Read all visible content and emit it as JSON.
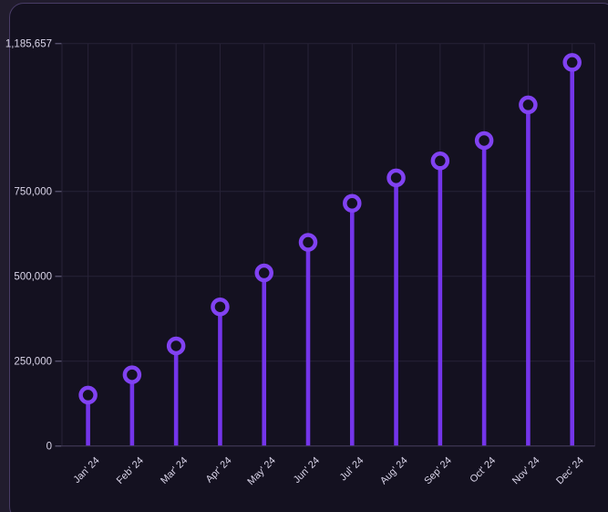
{
  "chart_data": {
    "type": "bar",
    "style": "lollipop",
    "title": "",
    "xlabel": "",
    "ylabel": "",
    "categories": [
      "Jan' 24",
      "Feb' 24",
      "Mar' 24",
      "Apr' 24",
      "May' 24",
      "Jun' 24",
      "Jul' 24",
      "Aug' 24",
      "Sep' 24",
      "Oct' 24",
      "Nov' 24",
      "Dec' 24"
    ],
    "values": [
      150000,
      210000,
      295000,
      410000,
      510000,
      600000,
      715000,
      790000,
      840000,
      900000,
      1005000,
      1130000
    ],
    "ylim": [
      0,
      1185657
    ],
    "yticks": [
      {
        "value": 0,
        "label": "0"
      },
      {
        "value": 250000,
        "label": "250,000"
      },
      {
        "value": 500000,
        "label": "500,000"
      },
      {
        "value": 750000,
        "label": "750,000"
      },
      {
        "value": 1185657,
        "label": "1,185,657"
      }
    ],
    "grid": true,
    "legend": false,
    "colors": {
      "stem": "#7435ea",
      "marker_ring": "#8142f2",
      "marker_hole": "#141120",
      "grid_line": "#272237",
      "axis_line": "#413a57",
      "tick_mark": "#55506c",
      "tick_text": "#d9d4e8",
      "panel_background": "#141120",
      "page_background": "#211c2d",
      "panel_border": "#483c66"
    }
  }
}
